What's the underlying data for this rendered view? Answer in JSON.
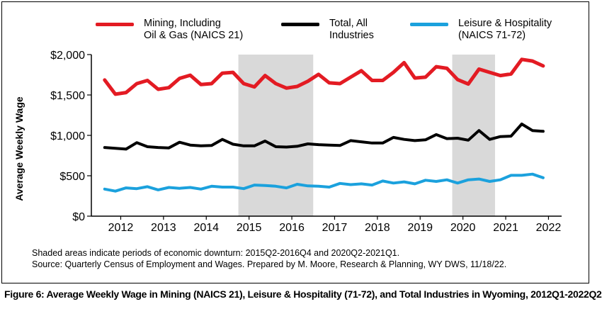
{
  "chart_data": {
    "type": "line",
    "ylabel": "Average Weekly Wage",
    "xlabel": "",
    "ylim": [
      0,
      2000
    ],
    "y_ticks": [
      "$0",
      "$500",
      "$1,000",
      "$1,500",
      "$2,000"
    ],
    "y_tick_values": [
      0,
      500,
      1000,
      1500,
      2000
    ],
    "x_ticks": [
      "2012",
      "2013",
      "2014",
      "2015",
      "2016",
      "2017",
      "2018",
      "2019",
      "2020",
      "2021",
      "2022"
    ],
    "x_start_quarter": "2012Q1",
    "x_end_quarter": "2022Q2",
    "grid": false,
    "legend_position": "top",
    "shaded_periods": [
      [
        "2015Q2",
        "2016Q4"
      ],
      [
        "2020Q2",
        "2021Q1"
      ]
    ],
    "series": [
      {
        "name": "Mining, Including Oil & Gas (NAICS 21)",
        "color": "#e31b23",
        "values": [
          1685,
          1510,
          1530,
          1640,
          1680,
          1570,
          1590,
          1705,
          1745,
          1630,
          1640,
          1770,
          1780,
          1640,
          1600,
          1740,
          1640,
          1585,
          1605,
          1670,
          1755,
          1650,
          1640,
          1720,
          1800,
          1680,
          1680,
          1780,
          1900,
          1710,
          1720,
          1850,
          1830,
          1690,
          1635,
          1820,
          1780,
          1740,
          1760,
          1940,
          1920,
          1860
        ]
      },
      {
        "name": "Total, All Industries",
        "color": "#000000",
        "values": [
          850,
          840,
          830,
          910,
          860,
          850,
          845,
          915,
          880,
          870,
          875,
          950,
          890,
          870,
          870,
          930,
          860,
          855,
          865,
          895,
          885,
          880,
          875,
          935,
          920,
          905,
          905,
          975,
          950,
          935,
          945,
          1010,
          960,
          965,
          940,
          1060,
          950,
          985,
          990,
          1140,
          1060,
          1050
        ]
      },
      {
        "name": "Leisure & Hospitality (NAICS 71-72)",
        "color": "#1ba1dd",
        "values": [
          335,
          310,
          350,
          340,
          365,
          325,
          355,
          345,
          355,
          335,
          370,
          360,
          360,
          340,
          385,
          380,
          370,
          350,
          395,
          375,
          370,
          360,
          405,
          390,
          400,
          385,
          435,
          410,
          425,
          400,
          445,
          430,
          450,
          410,
          450,
          460,
          430,
          450,
          505,
          505,
          520,
          475
        ]
      }
    ]
  },
  "legend": [
    {
      "line1": "Mining, Including",
      "line2": "Oil & Gas (NAICS 21)",
      "color": "#e31b23"
    },
    {
      "line1": "Total, All",
      "line2": "Industries",
      "color": "#000000"
    },
    {
      "line1": "Leisure & Hospitality",
      "line2": "(NAICS 71-72)",
      "color": "#1ba1dd"
    }
  ],
  "notes": {
    "line1": "Shaded areas indicate periods of economic downturn: 2015Q2-2016Q4 and 2020Q2-2021Q1.",
    "line2": "Source: Quarterly Census of Employment and Wages. Prepared by M. Moore, Research & Planning, WY DWS, 11/18/22."
  },
  "caption": "Figure 6: Average Weekly Wage in Mining (NAICS 21), Leisure & Hospitality (71-72), and Total Industries in Wyoming, 2012Q1-2022Q2"
}
